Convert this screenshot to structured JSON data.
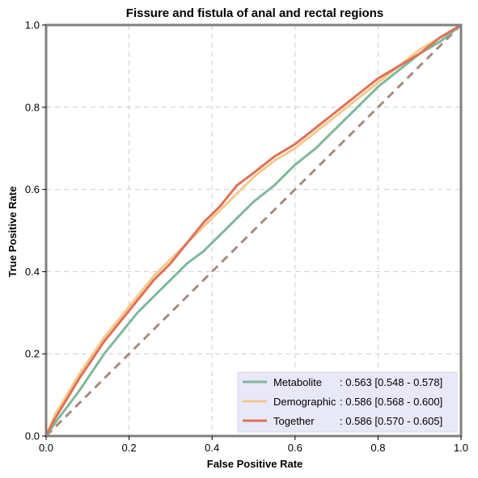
{
  "chart_data": {
    "type": "line",
    "title": "Fissure and fistula of anal and rectal regions",
    "xlabel": "False Positive Rate",
    "ylabel": "True Positive Rate",
    "xlim": [
      0,
      1
    ],
    "ylim": [
      0,
      1
    ],
    "xticks": [
      "0.0",
      "0.2",
      "0.4",
      "0.6",
      "0.8",
      "1.0"
    ],
    "yticks": [
      "0.0",
      "0.2",
      "0.4",
      "0.6",
      "0.8",
      "1.0"
    ],
    "grid": true,
    "legend_position": "bottom-right",
    "colors": {
      "chance": "#a88a80",
      "grid": "#cccccc",
      "frame": "#808080",
      "legend_bg": "#e8e8f8"
    },
    "chance_line": {
      "x": [
        0,
        1
      ],
      "y": [
        0,
        1
      ]
    },
    "series": [
      {
        "name": "Metabolite",
        "stat": ": 0.563 [0.548 - 0.578]",
        "color": "#7fb89b",
        "x": [
          0,
          0.02,
          0.05,
          0.08,
          0.1,
          0.14,
          0.18,
          0.22,
          0.26,
          0.3,
          0.34,
          0.38,
          0.42,
          0.46,
          0.5,
          0.55,
          0.6,
          0.65,
          0.7,
          0.75,
          0.8,
          0.85,
          0.9,
          0.95,
          1.0
        ],
        "y": [
          0,
          0.03,
          0.07,
          0.11,
          0.14,
          0.2,
          0.25,
          0.3,
          0.34,
          0.38,
          0.42,
          0.45,
          0.49,
          0.53,
          0.57,
          0.61,
          0.66,
          0.7,
          0.75,
          0.8,
          0.85,
          0.89,
          0.93,
          0.96,
          1.0
        ]
      },
      {
        "name": "Demographic",
        "stat": ": 0.586 [0.568 - 0.600]",
        "color": "#f5c98a",
        "x": [
          0,
          0.02,
          0.05,
          0.08,
          0.1,
          0.14,
          0.18,
          0.22,
          0.26,
          0.3,
          0.34,
          0.38,
          0.42,
          0.46,
          0.5,
          0.55,
          0.6,
          0.65,
          0.7,
          0.75,
          0.8,
          0.85,
          0.9,
          0.95,
          1.0
        ],
        "y": [
          0,
          0.05,
          0.1,
          0.15,
          0.18,
          0.24,
          0.29,
          0.34,
          0.39,
          0.43,
          0.47,
          0.51,
          0.55,
          0.59,
          0.63,
          0.67,
          0.7,
          0.74,
          0.78,
          0.82,
          0.86,
          0.9,
          0.94,
          0.97,
          1.0
        ]
      },
      {
        "name": "Together",
        "stat": ": 0.586 [0.570 - 0.605]",
        "color": "#e07058",
        "x": [
          0,
          0.02,
          0.05,
          0.08,
          0.1,
          0.14,
          0.18,
          0.22,
          0.26,
          0.3,
          0.34,
          0.38,
          0.42,
          0.46,
          0.5,
          0.55,
          0.6,
          0.65,
          0.7,
          0.75,
          0.8,
          0.85,
          0.9,
          0.95,
          1.0
        ],
        "y": [
          0,
          0.04,
          0.09,
          0.14,
          0.17,
          0.23,
          0.28,
          0.33,
          0.38,
          0.42,
          0.47,
          0.52,
          0.56,
          0.61,
          0.64,
          0.68,
          0.71,
          0.75,
          0.79,
          0.83,
          0.87,
          0.9,
          0.93,
          0.97,
          1.0
        ]
      }
    ]
  }
}
